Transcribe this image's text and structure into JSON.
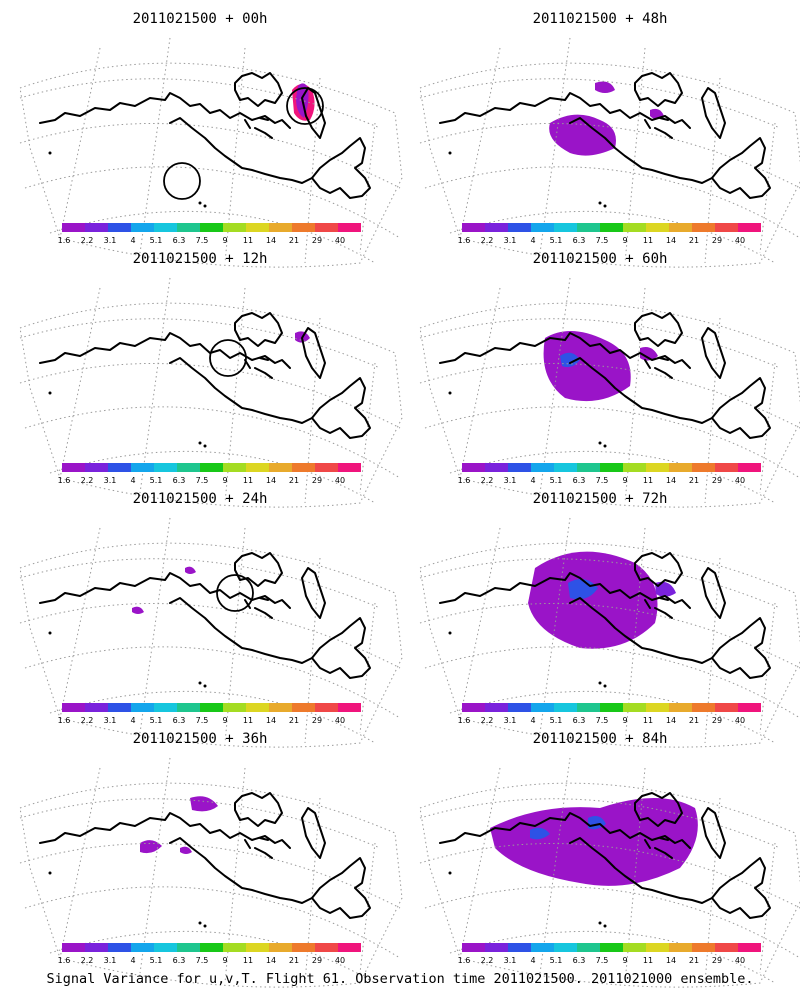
{
  "footer": "Signal Variance for u,v,T. Flight 61. Observation time 2011021500. 2011021000 ensemble.",
  "colorbar": {
    "labels": [
      "1.6",
      "2.2",
      "3.1",
      "4",
      "5.1",
      "6.3",
      "7.5",
      "9",
      "11",
      "14",
      "21",
      "29",
      "40"
    ],
    "colors": [
      "#9a14c8",
      "#7a22dc",
      "#2e52e6",
      "#14a6ec",
      "#16c6de",
      "#1ec68e",
      "#18c818",
      "#a4dc22",
      "#dcd622",
      "#e8aa2c",
      "#ee7a2c",
      "#f04848",
      "#f0147c"
    ]
  },
  "panels": [
    {
      "title": "2011021500 + 00h",
      "lead": "00h",
      "obs_circles": 2,
      "signal": "two small patches near the observation circle"
    },
    {
      "title": "2011021500 + 48h",
      "lead": "48h",
      "obs_circles": 0,
      "signal": "purple patches over the north Pacific"
    },
    {
      "title": "2011021500 + 12h",
      "lead": "12h",
      "obs_circles": 1,
      "signal": "small patch near the Arctic"
    },
    {
      "title": "2011021500 + 60h",
      "lead": "60h",
      "obs_circles": 0,
      "signal": "purple region with blue core"
    },
    {
      "title": "2011021500 + 24h",
      "lead": "24h",
      "obs_circles": 1,
      "signal": "small patches"
    },
    {
      "title": "2011021500 + 72h",
      "lead": "72h",
      "obs_circles": 0,
      "signal": "large purple region with blue core"
    },
    {
      "title": "2011021500 + 36h",
      "lead": "36h",
      "obs_circles": 0,
      "signal": "a few purple patches"
    },
    {
      "title": "2011021500 + 84h",
      "lead": "84h",
      "obs_circles": 0,
      "signal": "widespread purple region with blue cores"
    }
  ]
}
